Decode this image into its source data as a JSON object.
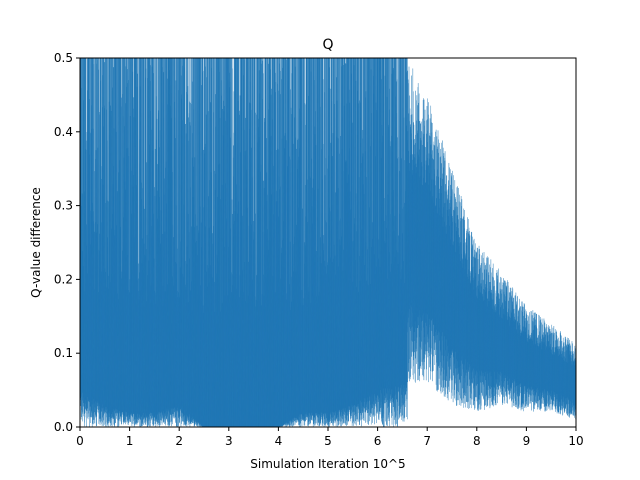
{
  "chart_data": {
    "type": "line",
    "title": "Q",
    "xlabel": "Simulation Iteration 10^5",
    "ylabel": "Q-value difference",
    "xlim": [
      0,
      10
    ],
    "ylim": [
      0,
      0.5
    ],
    "xticks": [
      "0",
      "1",
      "2",
      "3",
      "4",
      "5",
      "6",
      "7",
      "8",
      "9",
      "10"
    ],
    "yticks": [
      "0.0",
      "0.1",
      "0.2",
      "0.3",
      "0.4",
      "0.5"
    ],
    "grid": false,
    "series": [
      {
        "name": "",
        "color": "#1f77b4",
        "x": [
          0.0,
          0.5,
          1.0,
          1.5,
          2.0,
          2.5,
          3.0,
          3.5,
          4.0,
          4.5,
          5.0,
          5.5,
          6.0,
          6.5,
          6.6,
          7.0,
          7.5,
          8.0,
          8.5,
          9.0,
          9.5,
          10.0
        ],
        "envelope_upper": [
          0.5,
          0.5,
          0.5,
          0.5,
          0.5,
          0.5,
          0.5,
          0.5,
          0.5,
          0.5,
          0.5,
          0.5,
          0.5,
          0.5,
          0.5,
          0.45,
          0.35,
          0.25,
          0.21,
          0.165,
          0.14,
          0.115
        ],
        "lower_typical": [
          0.05,
          0.03,
          0.02,
          0.02,
          0.03,
          0.0,
          0.0,
          0.0,
          0.0,
          0.02,
          0.02,
          0.03,
          0.05,
          0.06,
          0.06,
          0.06,
          0.03,
          0.02,
          0.03,
          0.02,
          0.02,
          0.01
        ]
      }
    ]
  }
}
